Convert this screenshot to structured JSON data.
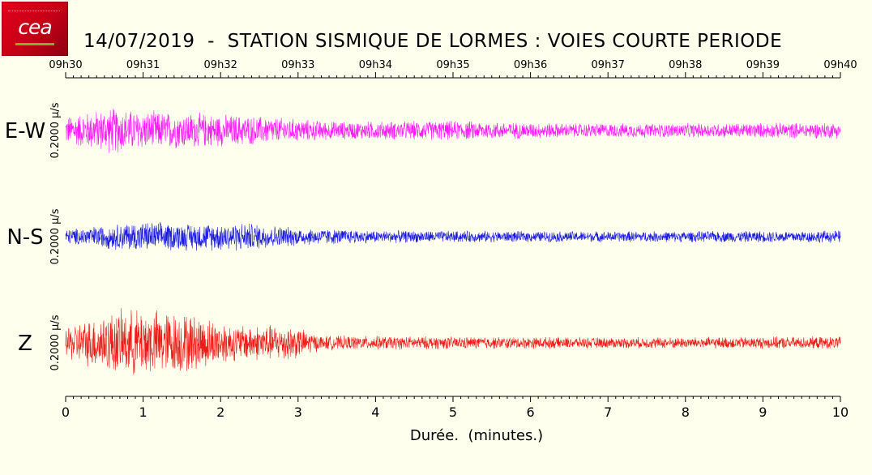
{
  "header": {
    "title": "14/07/2019  -  STATION SISMIQUE DE LORMES : VOIES COURTE PERIODE",
    "logo_text": "cea"
  },
  "chart_data": {
    "type": "line",
    "title": "14/07/2019  -  STATION SISMIQUE DE LORMES : VOIES COURTE PERIODE",
    "xlabel": "Durée.  (minutes.)",
    "xlim": [
      0,
      10
    ],
    "x_ticks": [
      "0",
      "1",
      "2",
      "3",
      "4",
      "5",
      "6",
      "7",
      "8",
      "9",
      "10"
    ],
    "top_axis_ticks": [
      "09h30",
      "09h31",
      "09h32",
      "09h33",
      "09h34",
      "09h35",
      "09h36",
      "09h37",
      "09h38",
      "09h39",
      "09h40"
    ],
    "scale_label": "0.2000 µ/s",
    "series": [
      {
        "name": "E-W",
        "color": "#ff00ff",
        "amplitude_envelope": [
          {
            "minute": 0,
            "amp": 0.16
          },
          {
            "minute": 0.6,
            "amp": 0.26
          },
          {
            "minute": 1.0,
            "amp": 0.22
          },
          {
            "minute": 1.6,
            "amp": 0.2
          },
          {
            "minute": 2.5,
            "amp": 0.16
          },
          {
            "minute": 3.5,
            "amp": 0.1
          },
          {
            "minute": 5.0,
            "amp": 0.11
          },
          {
            "minute": 6.5,
            "amp": 0.08
          },
          {
            "minute": 8.0,
            "amp": 0.08
          },
          {
            "minute": 10,
            "amp": 0.09
          }
        ]
      },
      {
        "name": "N-S",
        "color": "#0000e0",
        "amplitude_envelope": [
          {
            "minute": 0,
            "amp": 0.08
          },
          {
            "minute": 0.9,
            "amp": 0.17
          },
          {
            "minute": 1.5,
            "amp": 0.15
          },
          {
            "minute": 2.3,
            "amp": 0.16
          },
          {
            "minute": 3.0,
            "amp": 0.1
          },
          {
            "minute": 4.0,
            "amp": 0.07
          },
          {
            "minute": 6.0,
            "amp": 0.06
          },
          {
            "minute": 8.0,
            "amp": 0.06
          },
          {
            "minute": 10,
            "amp": 0.07
          }
        ]
      },
      {
        "name": "Z",
        "color": "#ee0000",
        "amplitude_envelope": [
          {
            "minute": 0,
            "amp": 0.18
          },
          {
            "minute": 0.6,
            "amp": 0.35
          },
          {
            "minute": 1.0,
            "amp": 0.38
          },
          {
            "minute": 1.6,
            "amp": 0.33
          },
          {
            "minute": 2.2,
            "amp": 0.2
          },
          {
            "minute": 2.9,
            "amp": 0.2
          },
          {
            "minute": 3.3,
            "amp": 0.08
          },
          {
            "minute": 5.0,
            "amp": 0.07
          },
          {
            "minute": 7.0,
            "amp": 0.06
          },
          {
            "minute": 10,
            "amp": 0.07
          }
        ]
      }
    ]
  }
}
